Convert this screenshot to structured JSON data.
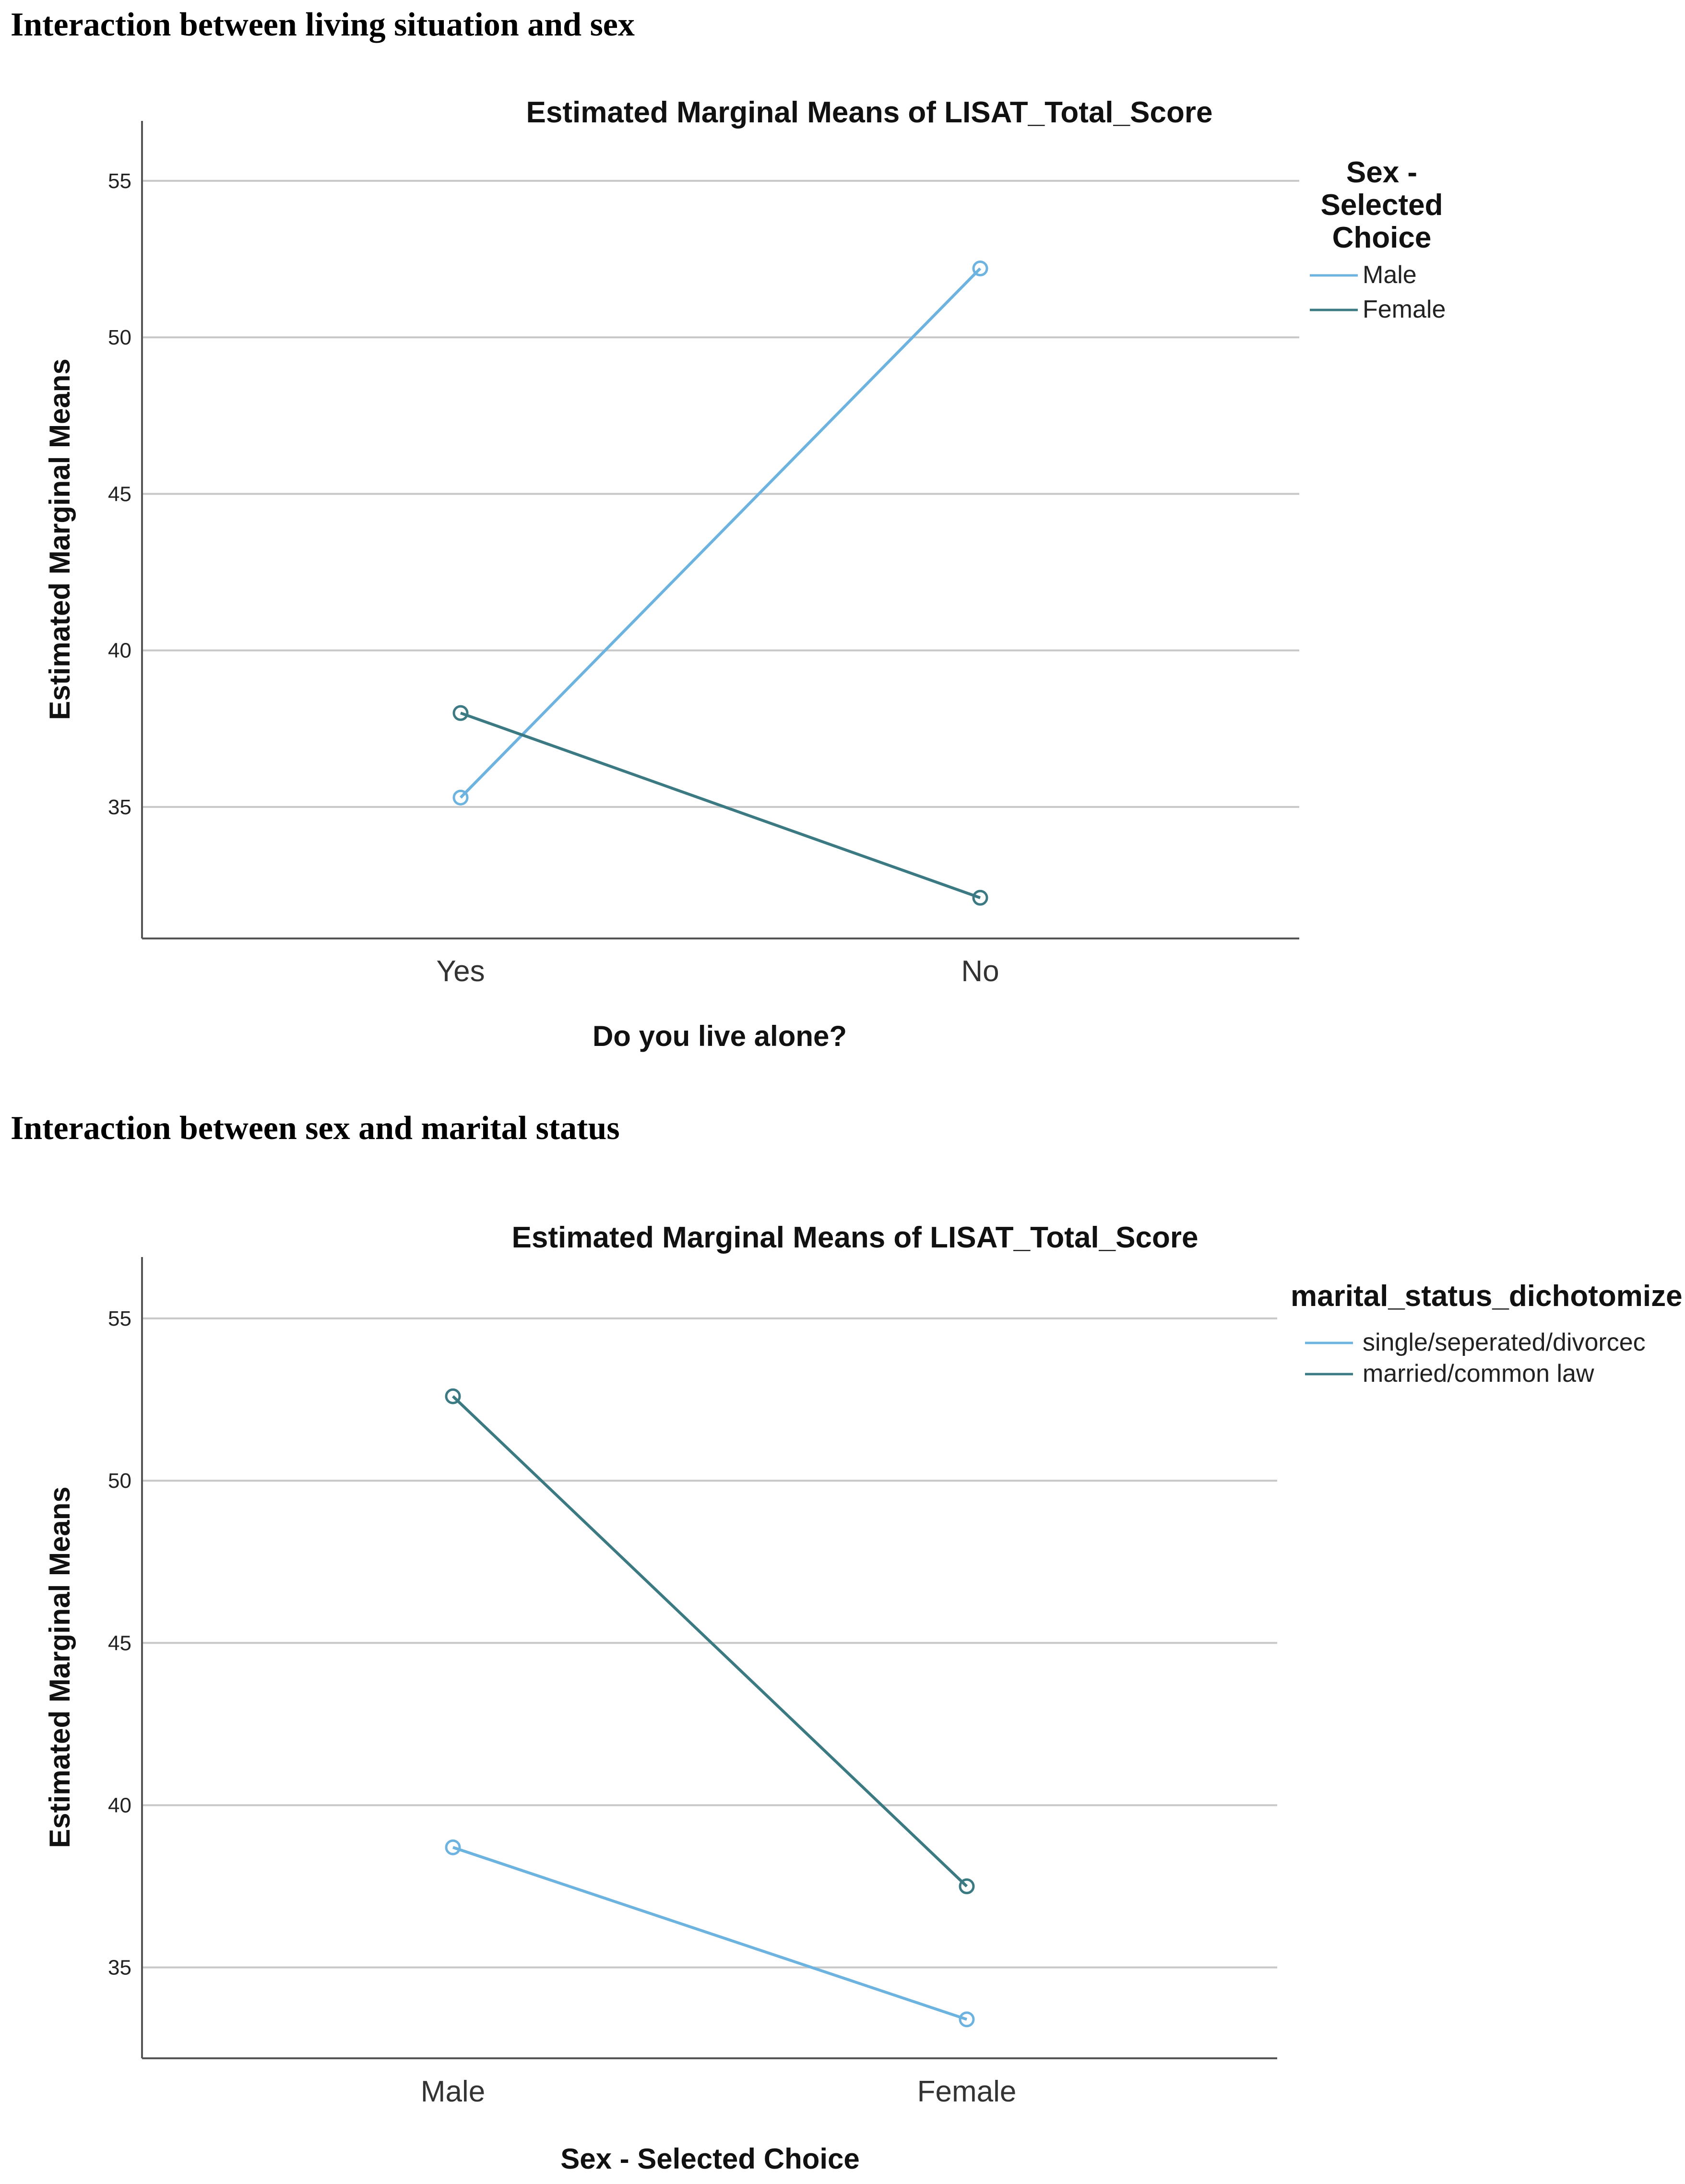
{
  "headings": {
    "first": "Interaction between living situation and sex",
    "second": "Interaction between sex and marital status"
  },
  "colors": {
    "light_blue": "#6db3e0",
    "dark_teal": "#3b7a82",
    "grid": "#c8c8c8",
    "axis": "#555555"
  },
  "chart_data": [
    {
      "type": "line",
      "title": "Estimated Marginal Means of LISAT_Total_Score",
      "xlabel": "Do you live alone?",
      "ylabel": "Estimated Marginal Means",
      "categories": [
        "Yes",
        "No"
      ],
      "ylim": [
        30.8,
        56.3
      ],
      "yticks": [
        35,
        40,
        45,
        50,
        55
      ],
      "grid": true,
      "legend_title": [
        "Sex -",
        "Selected",
        "Choice"
      ],
      "legend_position": "right",
      "series": [
        {
          "name": "Male",
          "values": [
            35.3,
            52.2
          ],
          "color": "#6db3e0"
        },
        {
          "name": "Female",
          "values": [
            38.0,
            32.1
          ],
          "color": "#3b7a82"
        }
      ]
    },
    {
      "type": "line",
      "title": "Estimated Marginal Means of LISAT_Total_Score",
      "xlabel": "Sex - Selected Choice",
      "ylabel": "Estimated Marginal Means",
      "categories": [
        "Male",
        "Female"
      ],
      "ylim": [
        32.2,
        56.3
      ],
      "yticks": [
        35,
        40,
        45,
        50,
        55
      ],
      "grid": true,
      "legend_title": [
        "marital_status_dichotomize"
      ],
      "legend_position": "right",
      "series": [
        {
          "name": "single/seperated/divorcec",
          "values": [
            38.7,
            33.4
          ],
          "color": "#6db3e0"
        },
        {
          "name": "married/common law",
          "values": [
            52.6,
            37.5
          ],
          "color": "#3b7a82"
        }
      ]
    }
  ]
}
